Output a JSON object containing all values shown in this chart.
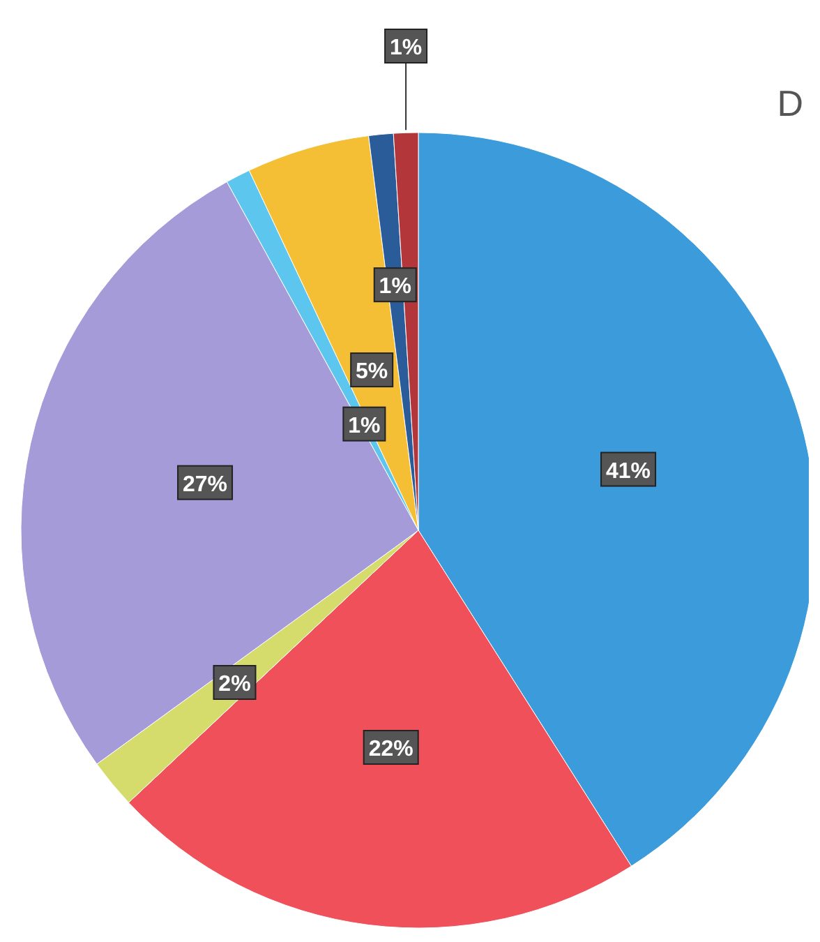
{
  "chart_data": {
    "type": "pie",
    "title": "D",
    "categories": [
      null,
      null,
      null,
      null,
      null,
      null,
      null,
      null
    ],
    "values": [
      41,
      22,
      2,
      27,
      1,
      5,
      1,
      1
    ],
    "colors": [
      "#3b9bdb",
      "#f0505a",
      "#d6dc6c",
      "#a59bd8",
      "#5cc6ef",
      "#f4bf34",
      "#2b5c9a",
      "#b3363a"
    ],
    "value_labels": [
      "41%",
      "22%",
      "2%",
      "27%",
      "1%",
      "5%",
      "1%",
      "1%"
    ]
  }
}
